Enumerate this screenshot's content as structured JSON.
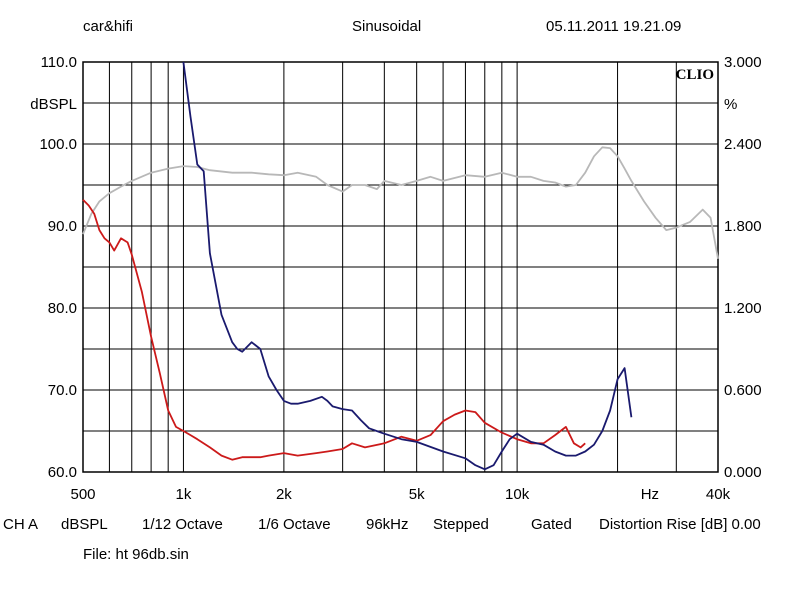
{
  "header": {
    "left": "car&hifi",
    "center": "Sinusoidal",
    "right": "05.11.2011 19.21.09"
  },
  "footer": {
    "params": [
      "CH A",
      "dBSPL",
      "1/12 Octave",
      "1/6 Octave",
      "96kHz",
      "Stepped",
      "Gated",
      "Distortion Rise [dB] 0.00"
    ],
    "file": "File: ht 96db.sin"
  },
  "brand": "CLIO",
  "chart_data": {
    "type": "line",
    "xscale": "log",
    "xlim": [
      500,
      40000
    ],
    "x_tick_labels": [
      {
        "value": 500,
        "label": "500"
      },
      {
        "value": 1000,
        "label": "1k"
      },
      {
        "value": 2000,
        "label": "2k"
      },
      {
        "value": 5000,
        "label": "5k"
      },
      {
        "value": 10000,
        "label": "10k"
      },
      {
        "value": 25000,
        "label": "Hz"
      },
      {
        "value": 40000,
        "label": "40k"
      }
    ],
    "x_gridlines": [
      500,
      600,
      700,
      800,
      900,
      1000,
      2000,
      3000,
      4000,
      5000,
      6000,
      7000,
      8000,
      9000,
      10000,
      20000,
      30000,
      40000
    ],
    "ylim": [
      60,
      110
    ],
    "ylabel": "dBSPL",
    "y_tick_labels": [
      "60.0",
      "70.0",
      "80.0",
      "90.0",
      "100.0",
      "110.0"
    ],
    "y_ticks": [
      60,
      70,
      80,
      90,
      100,
      110
    ],
    "y2lim": [
      0,
      3
    ],
    "y2label": "%",
    "y2_tick_labels": [
      "0.000",
      "0.600",
      "1.200",
      "1.800",
      "2.400",
      "3.000"
    ],
    "y2_ticks": [
      0,
      0.6,
      1.2,
      1.8,
      2.4,
      3.0
    ],
    "grid": true,
    "series": [
      {
        "axis": "left",
        "color": "#b8b8b8",
        "x": [
          500,
          530,
          560,
          600,
          650,
          700,
          800,
          900,
          1000,
          1100,
          1200,
          1400,
          1600,
          1800,
          2000,
          2200,
          2500,
          2700,
          3000,
          3200,
          3500,
          3800,
          4000,
          4500,
          5000,
          5500,
          6000,
          7000,
          8000,
          9000,
          10000,
          11000,
          12000,
          13000,
          14000,
          15000,
          16000,
          17000,
          18000,
          19000,
          20000,
          21000,
          22000,
          24000,
          26000,
          28000,
          30000,
          33000,
          36000,
          38000,
          40000
        ],
        "y": [
          89.0,
          91.5,
          93.0,
          94.0,
          94.8,
          95.5,
          96.5,
          97.0,
          97.3,
          97.2,
          96.8,
          96.5,
          96.5,
          96.3,
          96.2,
          96.5,
          96.0,
          95.0,
          94.2,
          95.0,
          95.0,
          94.5,
          95.5,
          95.0,
          95.5,
          96.0,
          95.5,
          96.2,
          96.0,
          96.5,
          96.0,
          96.0,
          95.5,
          95.3,
          94.8,
          95.0,
          96.5,
          98.5,
          99.6,
          99.5,
          98.5,
          97.0,
          95.5,
          93.0,
          91.0,
          89.5,
          89.8,
          90.5,
          92.0,
          91.0,
          86.0
        ]
      },
      {
        "axis": "left",
        "color": "#cc1a1a",
        "x": [
          500,
          520,
          540,
          560,
          580,
          600,
          620,
          650,
          680,
          700,
          750,
          800,
          850,
          900,
          950,
          1000,
          1050,
          1100,
          1200,
          1300,
          1400,
          1500,
          1600,
          1700,
          1800,
          2000,
          2200,
          2500,
          2700,
          3000,
          3200,
          3500,
          3800,
          4000,
          4500,
          5000,
          5500,
          6000,
          6500,
          7000,
          7500,
          8000,
          9000,
          10000,
          11000,
          12000,
          13000,
          14000,
          14800,
          15500,
          16000
        ],
        "y": [
          93.2,
          92.5,
          91.5,
          89.5,
          88.5,
          88.0,
          87.0,
          88.5,
          88.0,
          86.5,
          82.0,
          76.5,
          72.0,
          67.5,
          65.5,
          65.0,
          64.5,
          64.0,
          63.0,
          62.0,
          61.5,
          61.8,
          61.8,
          61.8,
          62.0,
          62.3,
          62.0,
          62.3,
          62.5,
          62.8,
          63.5,
          63.0,
          63.3,
          63.5,
          64.3,
          63.8,
          64.5,
          66.2,
          67.0,
          67.5,
          67.3,
          66.0,
          64.8,
          64.0,
          63.5,
          63.5,
          64.5,
          65.5,
          63.5,
          63.0,
          63.5
        ]
      },
      {
        "axis": "right",
        "color": "#1a1a6e",
        "x": [
          1000,
          1050,
          1100,
          1150,
          1200,
          1300,
          1400,
          1450,
          1500,
          1600,
          1700,
          1800,
          1900,
          2000,
          2100,
          2200,
          2400,
          2600,
          2700,
          2800,
          3000,
          3200,
          3400,
          3600,
          4000,
          4500,
          5000,
          6000,
          7000,
          7500,
          8000,
          8500,
          9000,
          9500,
          10000,
          11000,
          12000,
          13000,
          14000,
          15000,
          16000,
          17000,
          18000,
          19000,
          20000,
          21000,
          22000
        ],
        "y": [
          3.0,
          2.6,
          2.25,
          2.2,
          1.6,
          1.15,
          0.95,
          0.9,
          0.88,
          0.95,
          0.9,
          0.7,
          0.6,
          0.52,
          0.5,
          0.5,
          0.52,
          0.55,
          0.52,
          0.48,
          0.46,
          0.45,
          0.38,
          0.32,
          0.28,
          0.24,
          0.22,
          0.15,
          0.1,
          0.05,
          0.02,
          0.05,
          0.15,
          0.24,
          0.28,
          0.22,
          0.2,
          0.15,
          0.12,
          0.12,
          0.15,
          0.2,
          0.3,
          0.45,
          0.68,
          0.76,
          0.4
        ]
      }
    ]
  }
}
